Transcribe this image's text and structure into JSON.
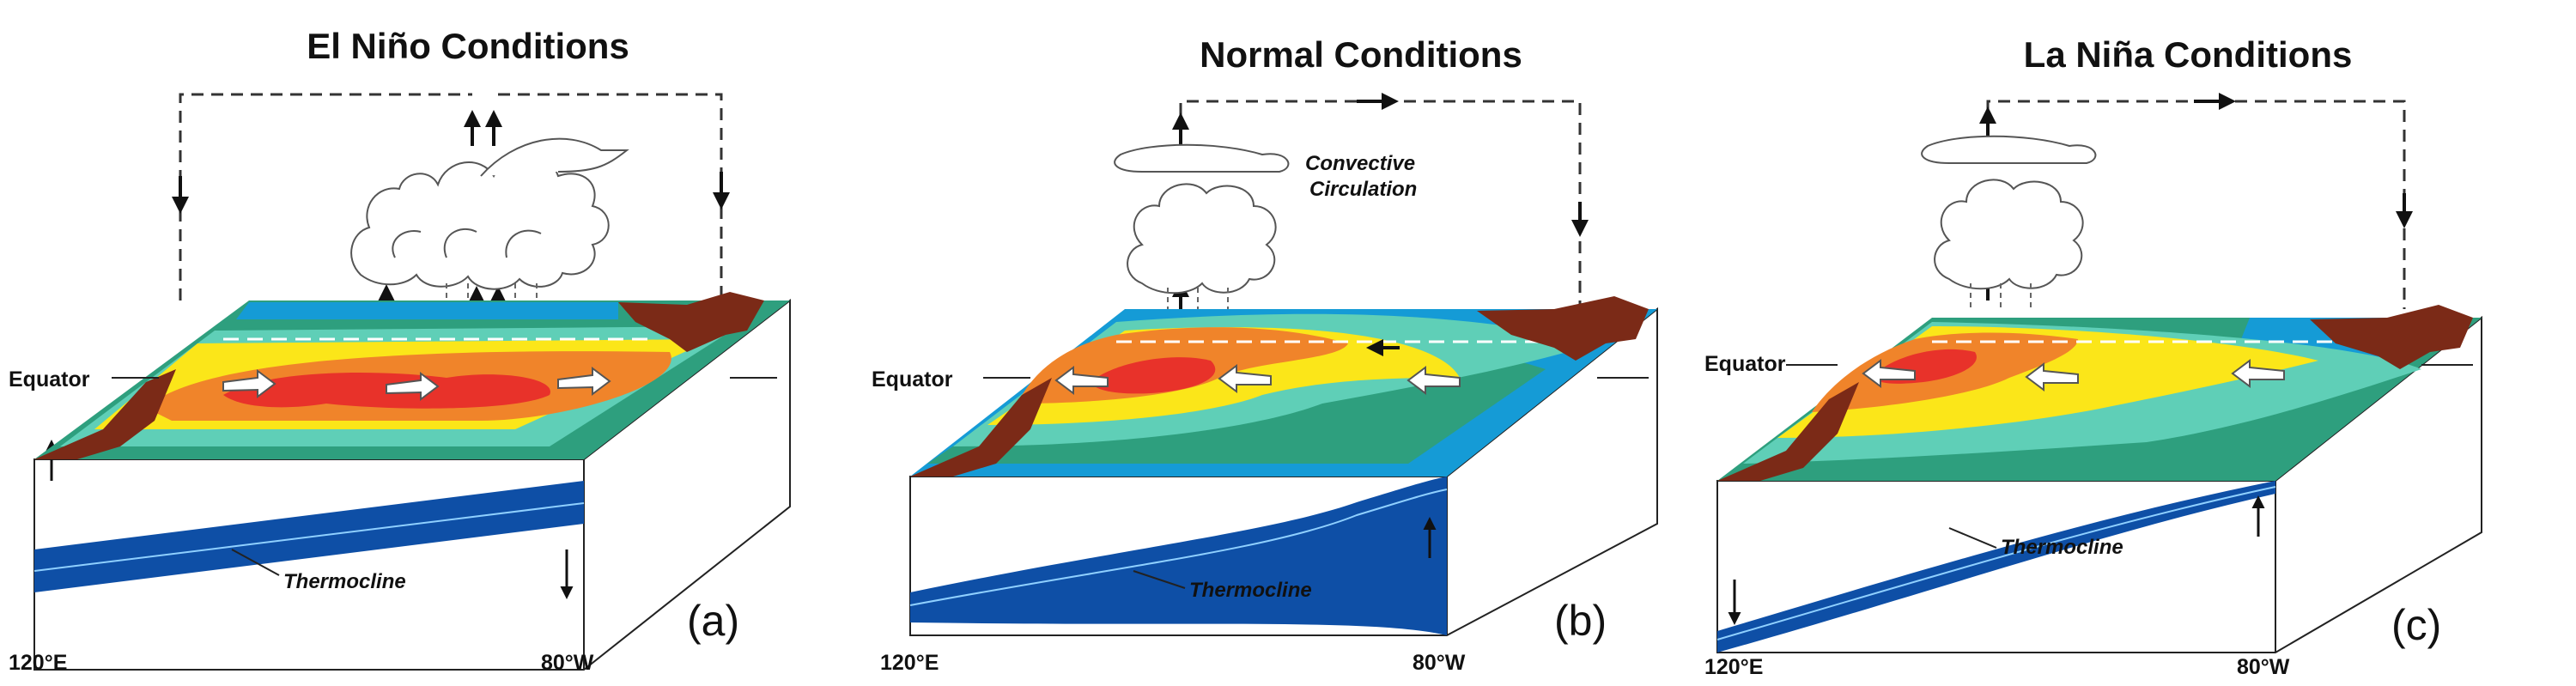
{
  "panels": [
    {
      "id": "a",
      "title": "El Niño Conditions",
      "equator": "Equator",
      "lon_west": "120°E",
      "lon_east": "80°W",
      "thermocline": "Thermocline",
      "panel_label": "(a)"
    },
    {
      "id": "b",
      "title": "Normal Conditions",
      "equator": "Equator",
      "lon_west": "120°E",
      "lon_east": "80°W",
      "thermocline": "Thermocline",
      "panel_label": "(b)",
      "circulation_label_1": "Convective",
      "circulation_label_2": "Circulation"
    },
    {
      "id": "c",
      "title": "La Niña Conditions",
      "equator": "Equator",
      "lon_west": "120°E",
      "lon_east": "80°W",
      "thermocline": "Thermocline",
      "panel_label": "(c)"
    }
  ],
  "colors": {
    "warm_core": "#e8322a",
    "warm": "#f0842a",
    "mild": "#fbe619",
    "cool": "#5fcfb7",
    "cold": "#2e9f7e",
    "coldest": "#159bd6",
    "land": "#7b2a17",
    "ocean_layer": "#0e4fa6"
  }
}
